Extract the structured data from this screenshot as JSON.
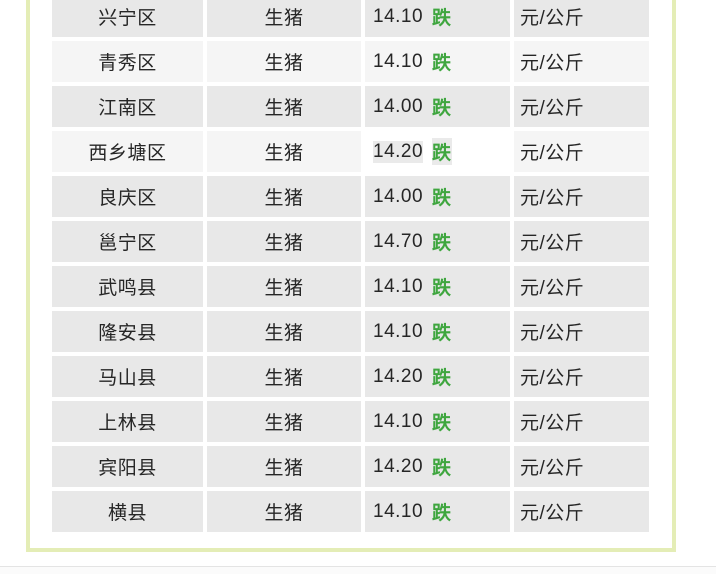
{
  "table": {
    "product_label": "生猪",
    "unit_label": "元/公斤",
    "trend_label": "跌",
    "rows": [
      {
        "region": "兴宁区",
        "product": "生猪",
        "price": "14.10",
        "trend": "跌",
        "unit": "元/公斤",
        "shade": "dark",
        "highlight": false
      },
      {
        "region": "青秀区",
        "product": "生猪",
        "price": "14.10",
        "trend": "跌",
        "unit": "元/公斤",
        "shade": "light",
        "highlight": false
      },
      {
        "region": "江南区",
        "product": "生猪",
        "price": "14.00",
        "trend": "跌",
        "unit": "元/公斤",
        "shade": "dark",
        "highlight": false
      },
      {
        "region": "西乡塘区",
        "product": "生猪",
        "price": "14.20",
        "trend": "跌",
        "unit": "元/公斤",
        "shade": "light",
        "highlight": true
      },
      {
        "region": "良庆区",
        "product": "生猪",
        "price": "14.00",
        "trend": "跌",
        "unit": "元/公斤",
        "shade": "dark",
        "highlight": false
      },
      {
        "region": "邕宁区",
        "product": "生猪",
        "price": "14.70",
        "trend": "跌",
        "unit": "元/公斤",
        "shade": "dark",
        "highlight": false
      },
      {
        "region": "武鸣县",
        "product": "生猪",
        "price": "14.10",
        "trend": "跌",
        "unit": "元/公斤",
        "shade": "dark",
        "highlight": false
      },
      {
        "region": "隆安县",
        "product": "生猪",
        "price": "14.10",
        "trend": "跌",
        "unit": "元/公斤",
        "shade": "dark",
        "highlight": false
      },
      {
        "region": "马山县",
        "product": "生猪",
        "price": "14.20",
        "trend": "跌",
        "unit": "元/公斤",
        "shade": "dark",
        "highlight": false
      },
      {
        "region": "上林县",
        "product": "生猪",
        "price": "14.10",
        "trend": "跌",
        "unit": "元/公斤",
        "shade": "dark",
        "highlight": false
      },
      {
        "region": "宾阳县",
        "product": "生猪",
        "price": "14.20",
        "trend": "跌",
        "unit": "元/公斤",
        "shade": "dark",
        "highlight": false
      },
      {
        "region": "横县",
        "product": "生猪",
        "price": "14.10",
        "trend": "跌",
        "unit": "元/公斤",
        "shade": "dark",
        "highlight": false
      }
    ]
  },
  "colors": {
    "row_dark": "#e8e8e8",
    "row_light": "#f5f5f5",
    "highlight_cell": "#ffffff",
    "highlight_text_bg": "#eaeaea",
    "trend_green": "#3fa63f",
    "panel_border": "#e4edb6",
    "text": "#262626",
    "bottom_divider": "#e4e4e4"
  }
}
